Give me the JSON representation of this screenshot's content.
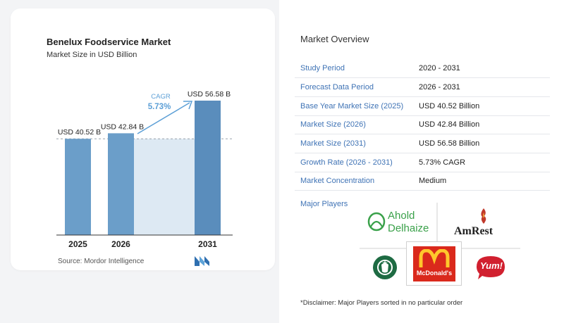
{
  "chart_data": {
    "type": "bar",
    "title": "Benelux Foodservice Market",
    "subtitle": "Market Size in USD Billion",
    "categories": [
      "2025",
      "2026",
      "2031"
    ],
    "values": [
      40.52,
      42.84,
      56.58
    ],
    "value_labels": [
      "USD 40.52 B",
      "USD 42.84 B",
      "USD 56.58 B"
    ],
    "cagr_label": "CAGR",
    "cagr_value": "5.73%",
    "colors": {
      "bar": "#6b9ec9",
      "bar_dark": "#5a8dbc",
      "shade": "#dde9f3",
      "cagr": "#5c9fd6"
    },
    "source": "Source:  Mordor Intelligence"
  },
  "overview": {
    "title": "Market Overview",
    "rows": [
      {
        "key": "Study Period",
        "value": "2020 - 2031"
      },
      {
        "key": "Forecast Data Period",
        "value": "2026 - 2031"
      },
      {
        "key": "Base Year Market Size (2025)",
        "value": "USD 40.52 Billion"
      },
      {
        "key": "Market Size (2026)",
        "value": "USD 42.84 Billion"
      },
      {
        "key": "Market Size (2031)",
        "value": "USD 56.58 Billion"
      },
      {
        "key": "Growth Rate (2026 - 2031)",
        "value": "5.73% CAGR"
      },
      {
        "key": "Market Concentration",
        "value": "Medium"
      }
    ]
  },
  "players": {
    "title": "Major Players",
    "logos": [
      {
        "icon": "ahold-delhaize-logo",
        "line1": "Ahold",
        "line2": "Delhaize"
      },
      {
        "icon": "amrest-logo",
        "text": "AmRest"
      },
      {
        "icon": "starbucks-logo"
      },
      {
        "icon": "mcdonalds-logo",
        "text": "McDonald's"
      },
      {
        "icon": "yum-logo",
        "text": "Yum!"
      }
    ],
    "disclaimer": "*Disclaimer: Major Players sorted in no particular order"
  }
}
